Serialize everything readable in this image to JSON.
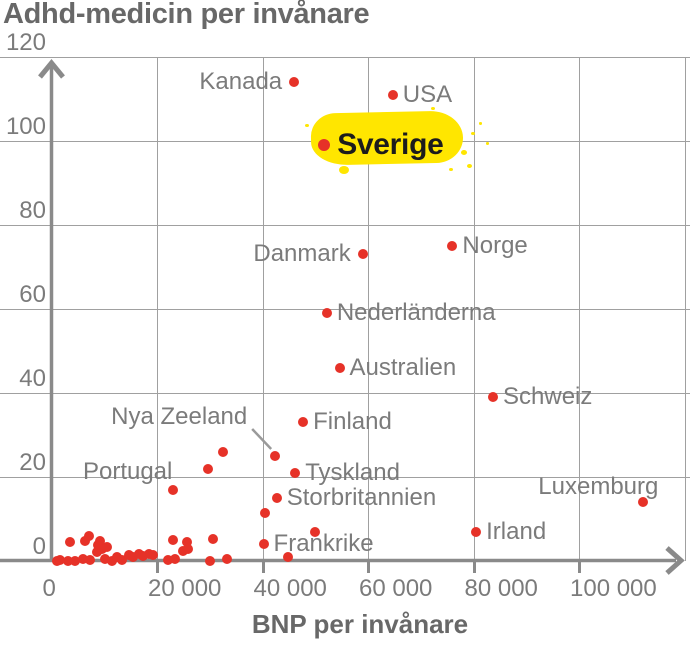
{
  "title": "Adhd-medicin per invånare",
  "colors": {
    "point_red": "#e63228",
    "highlight_yellow": "#ffe600",
    "highlight_text": "#1c1c1c",
    "label_gray": "#7b7b7b",
    "axis_gray": "#8a8a8a",
    "grid_gray": "#a0a0a0",
    "title_gray": "#686868"
  },
  "chart_data": {
    "type": "scatter",
    "title": "Adhd-medicin per invånare",
    "xlabel": "BNP per invånare",
    "ylabel": "",
    "xlim": [
      0,
      120000
    ],
    "ylim": [
      0,
      120
    ],
    "grid": true,
    "x_ticks": [
      {
        "v": 0,
        "label": "0"
      },
      {
        "v": 20000,
        "label": "20 000"
      },
      {
        "v": 40000,
        "label": "40 000"
      },
      {
        "v": 60000,
        "label": "60 000"
      },
      {
        "v": 80000,
        "label": "80 000"
      },
      {
        "v": 100000,
        "label": "100 000"
      }
    ],
    "y_ticks": [
      {
        "v": 0,
        "label": "0"
      },
      {
        "v": 20,
        "label": "20"
      },
      {
        "v": 40,
        "label": "40"
      },
      {
        "v": 60,
        "label": "60"
      },
      {
        "v": 80,
        "label": "80"
      },
      {
        "v": 100,
        "label": "100"
      },
      {
        "v": 120,
        "label": "120"
      }
    ],
    "labeled_points": [
      {
        "id": "kanada",
        "label": "Kanada",
        "x": 46000,
        "y": 114,
        "label_side": "left"
      },
      {
        "id": "usa",
        "label": "USA",
        "x": 64700,
        "y": 111,
        "label_side": "right"
      },
      {
        "id": "sverige",
        "label": "Sverige",
        "x": 51700,
        "y": 99,
        "label_side": "right",
        "highlighted": true
      },
      {
        "id": "danmark",
        "label": "Danmark",
        "x": 59000,
        "y": 73,
        "label_side": "left"
      },
      {
        "id": "norge",
        "label": "Norge",
        "x": 76000,
        "y": 75,
        "label_side": "right"
      },
      {
        "id": "nederlanderna",
        "label": "Nederländerna",
        "x": 52200,
        "y": 59,
        "label_side": "right"
      },
      {
        "id": "australien",
        "label": "Australien",
        "x": 54600,
        "y": 46,
        "label_side": "right"
      },
      {
        "id": "schweiz",
        "label": "Schweiz",
        "x": 83700,
        "y": 39,
        "label_side": "right"
      },
      {
        "id": "finland",
        "label": "Finland",
        "x": 47700,
        "y": 33,
        "label_side": "right"
      },
      {
        "id": "nya-zeeland",
        "label": "Nya Zeeland",
        "x": 42400,
        "y": 25,
        "label_side": "leader-upleft"
      },
      {
        "id": "tyskland",
        "label": "Tyskland",
        "x": 46200,
        "y": 21,
        "label_side": "right"
      },
      {
        "id": "storbritannien",
        "label": "Storbritannien",
        "x": 42700,
        "y": 15,
        "label_side": "right"
      },
      {
        "id": "portugal",
        "label": "Portugal",
        "x": 23100,
        "y": 17,
        "label_side": "upleft"
      },
      {
        "id": "frankrike",
        "label": "Frankrike",
        "x": 40200,
        "y": 4,
        "label_side": "right"
      },
      {
        "id": "irland",
        "label": "Irland",
        "x": 80500,
        "y": 7,
        "label_side": "right"
      },
      {
        "id": "luxemburg",
        "label": "Luxemburg",
        "x": 112200,
        "y": 14,
        "label_side": "upleft"
      }
    ],
    "unlabeled_points": [
      [
        1100,
        0
      ],
      [
        1600,
        0.3
      ],
      [
        3200,
        0
      ],
      [
        3500,
        4.5
      ],
      [
        4500,
        0
      ],
      [
        6000,
        0.5
      ],
      [
        6400,
        4.8
      ],
      [
        7200,
        5.9
      ],
      [
        7300,
        0.2
      ],
      [
        8600,
        2.1
      ],
      [
        8900,
        3.7
      ],
      [
        9200,
        4.8
      ],
      [
        9500,
        2.9
      ],
      [
        10100,
        0.5
      ],
      [
        10500,
        3.3
      ],
      [
        11400,
        0
      ],
      [
        12400,
        1
      ],
      [
        13300,
        0.3
      ],
      [
        14600,
        1.4
      ],
      [
        15500,
        1
      ],
      [
        16500,
        1.6
      ],
      [
        17400,
        1.1
      ],
      [
        18400,
        1.7
      ],
      [
        19300,
        1.4
      ],
      [
        22100,
        0.2
      ],
      [
        23100,
        4.9
      ],
      [
        23400,
        0.5
      ],
      [
        24900,
        2.4
      ],
      [
        25600,
        4.5
      ],
      [
        25900,
        2.9
      ],
      [
        30000,
        0
      ],
      [
        30700,
        5.3
      ],
      [
        33200,
        0.5
      ],
      [
        29700,
        22
      ],
      [
        32600,
        26
      ],
      [
        40500,
        11.5
      ],
      [
        44900,
        0.9
      ],
      [
        50000,
        6.8
      ]
    ]
  }
}
